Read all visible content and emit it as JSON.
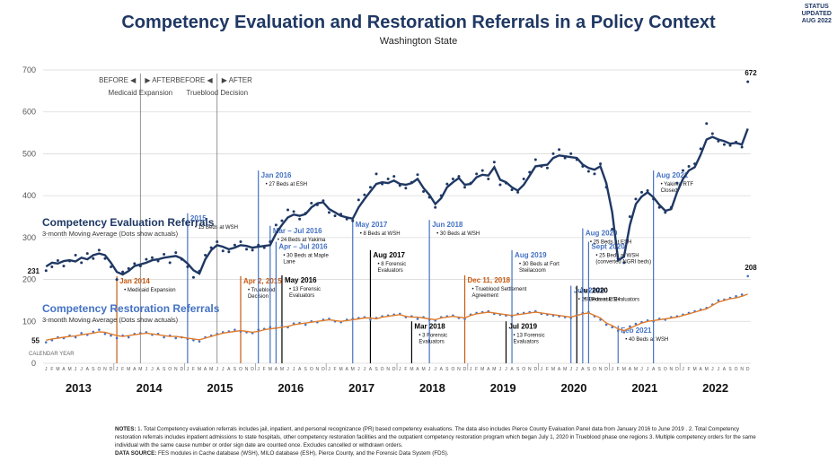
{
  "status": {
    "line1": "STATUS",
    "line2": "UPDATED",
    "line3": "AUG 2022"
  },
  "title": "Competency Evaluation and Restoration Referrals in a Policy Context",
  "subtitle": "Washington State",
  "notes": {
    "label": "NOTES:",
    "text": "1. Total Competency evaluation referrals includes jail, inpatient, and personal recognizance (PR) based competency evaluations. The data also includes Pierce County Evaluation Panel data from January 2016 to June 2019 . 2. Total Competency restoration referrals includes inpatient admissions to state hospitals, other competency restoration facilities and the outpatient competency restoration program which began July 1, 2020 in Trueblood phase one regions 3. Multiple competency orders for the same individual with the same cause number or order sign date are counted once. Excludes cancelled or withdrawn orders.",
    "source_label": "DATA SOURCE:",
    "source_text": "FES modules in Cache database (WSH), MILO database (ESH), Pierce County, and the Forensic Data System (FDS)."
  },
  "colors": {
    "eval": "#1f3864",
    "rest": "#e07b2b",
    "blue_event": "#4472c4",
    "orange_event": "#c55a11",
    "black_event": "#000000",
    "grid": "#d9d9d9"
  },
  "chart_data": {
    "type": "line",
    "x_unit": "month",
    "x_start": "2013-01",
    "ylim": [
      0,
      700
    ],
    "yticks": [
      0,
      100,
      200,
      300,
      400,
      500,
      600,
      700
    ],
    "year_labels": [
      "2013",
      "2014",
      "2015",
      "2016",
      "2017",
      "2018",
      "2019",
      "2020",
      "2021",
      "2022"
    ],
    "month_letters": [
      "J",
      "F",
      "M",
      "A",
      "M",
      "J",
      "J",
      "A",
      "S",
      "O",
      "N",
      "D"
    ],
    "calendar_year_label": "CALENDAR YEAR",
    "series": [
      {
        "name": "Competency Evaluation Referrals",
        "sublabel": "3-month Moving Average (Dots show actuals)",
        "color": "#1f3864",
        "start_label": "231",
        "end_label": "672",
        "average": [
          231,
          240,
          238,
          244,
          246,
          243,
          252,
          248,
          258,
          262,
          258,
          240,
          218,
          212,
          220,
          232,
          236,
          240,
          246,
          248,
          252,
          254,
          256,
          250,
          238,
          222,
          214,
          248,
          270,
          282,
          278,
          272,
          276,
          282,
          280,
          276,
          278,
          280,
          282,
          310,
          330,
          348,
          355,
          352,
          356,
          372,
          382,
          384,
          368,
          360,
          352,
          348,
          345,
          372,
          392,
          410,
          428,
          432,
          430,
          436,
          428,
          426,
          430,
          440,
          418,
          402,
          380,
          394,
          420,
          432,
          442,
          426,
          428,
          444,
          450,
          448,
          468,
          438,
          432,
          420,
          412,
          426,
          448,
          470,
          472,
          474,
          490,
          496,
          494,
          492,
          490,
          474,
          466,
          462,
          470,
          430,
          360,
          246,
          254,
          330,
          380,
          398,
          408,
          396,
          378,
          364,
          368,
          408,
          440,
          460,
          468,
          498,
          534,
          540,
          534,
          530,
          524,
          526,
          522,
          560
        ],
        "actual": [
          221,
          230,
          245,
          232,
          244,
          258,
          240,
          262,
          250,
          270,
          250,
          230,
          200,
          218,
          226,
          238,
          232,
          248,
          252,
          244,
          260,
          240,
          264,
          248,
          230,
          205,
          220,
          258,
          276,
          290,
          268,
          266,
          282,
          290,
          272,
          270,
          282,
          276,
          290,
          330,
          340,
          366,
          362,
          344,
          358,
          382,
          378,
          388,
          360,
          352,
          356,
          344,
          340,
          390,
          402,
          420,
          452,
          428,
          440,
          446,
          424,
          418,
          432,
          450,
          410,
          396,
          372,
          400,
          428,
          440,
          446,
          420,
          430,
          452,
          460,
          440,
          480,
          426,
          430,
          414,
          408,
          440,
          456,
          486,
          470,
          466,
          500,
          510,
          490,
          500,
          486,
          470,
          458,
          452,
          476,
          420,
          320,
          250,
          240,
          350,
          392,
          408,
          412,
          392,
          372,
          360,
          372,
          430,
          460,
          470,
          476,
          512,
          572,
          548,
          530,
          522,
          520,
          528,
          516,
          672
        ]
      },
      {
        "name": "Competency Restoration Referrals",
        "sublabel": "3-month Moving Average (Dots show actuals)",
        "color": "#e07b2b",
        "start_label": "55",
        "end_label": "208",
        "average": [
          55,
          58,
          60,
          62,
          64,
          65,
          68,
          70,
          72,
          75,
          74,
          70,
          66,
          64,
          66,
          68,
          70,
          72,
          70,
          68,
          66,
          64,
          64,
          62,
          60,
          58,
          56,
          60,
          64,
          68,
          72,
          74,
          76,
          78,
          76,
          74,
          76,
          80,
          82,
          84,
          86,
          88,
          92,
          94,
          96,
          98,
          100,
          102,
          104,
          102,
          100,
          102,
          104,
          106,
          108,
          108,
          106,
          110,
          112,
          114,
          116,
          112,
          110,
          110,
          108,
          106,
          104,
          108,
          110,
          112,
          110,
          108,
          114,
          118,
          120,
          122,
          120,
          118,
          116,
          114,
          116,
          118,
          120,
          122,
          120,
          118,
          116,
          114,
          112,
          110,
          114,
          118,
          120,
          114,
          108,
          96,
          90,
          82,
          78,
          84,
          90,
          96,
          100,
          102,
          104,
          106,
          108,
          110,
          114,
          118,
          122,
          126,
          130,
          138,
          146,
          150,
          154,
          156,
          160,
          165
        ],
        "actual": [
          50,
          55,
          62,
          60,
          66,
          62,
          72,
          68,
          75,
          80,
          70,
          66,
          60,
          66,
          62,
          70,
          72,
          74,
          68,
          70,
          62,
          66,
          60,
          62,
          58,
          55,
          52,
          62,
          66,
          70,
          74,
          76,
          80,
          76,
          74,
          72,
          80,
          82,
          86,
          84,
          90,
          86,
          95,
          96,
          92,
          100,
          98,
          104,
          106,
          100,
          98,
          104,
          106,
          108,
          110,
          104,
          108,
          112,
          114,
          116,
          118,
          110,
          112,
          106,
          110,
          104,
          102,
          110,
          112,
          114,
          108,
          106,
          116,
          120,
          122,
          124,
          118,
          116,
          114,
          112,
          118,
          120,
          122,
          124,
          118,
          116,
          114,
          112,
          110,
          108,
          116,
          120,
          122,
          112,
          104,
          92,
          86,
          78,
          74,
          88,
          94,
          98,
          102,
          100,
          106,
          104,
          110,
          112,
          116,
          120,
          124,
          128,
          132,
          140,
          150,
          152,
          156,
          160,
          164,
          208
        ]
      }
    ],
    "annotations": [
      {
        "kind": "bracket",
        "month": 16,
        "before": "BEFORE",
        "after": "AFTER",
        "name": "Medicaid Expansion"
      },
      {
        "kind": "bracket",
        "month": 29,
        "before": "BEFORE",
        "after": "AFTER",
        "name": "Trueblood Decision"
      },
      {
        "kind": "event",
        "color": "orange",
        "month": 12,
        "date": "Jan 2014",
        "lines": [
          "Medicaid Expansion"
        ],
        "top": 208
      },
      {
        "kind": "event",
        "color": "blue",
        "month": 24,
        "date": "2015",
        "lines": [
          "15 Beds at WSH"
        ],
        "top": 358
      },
      {
        "kind": "event",
        "color": "orange",
        "month": 33,
        "date": "Apr 2, 2015",
        "lines": [
          "Trueblood",
          "Decision"
        ],
        "top": 208
      },
      {
        "kind": "event",
        "color": "blue",
        "month": 36,
        "date": "Jan 2016",
        "lines": [
          "27 Beds at ESH"
        ],
        "top": 460
      },
      {
        "kind": "event",
        "color": "blue",
        "month": 38,
        "date": "Mar – Jul 2016",
        "lines": [
          "24 Beds at Yakima"
        ],
        "top": 328
      },
      {
        "kind": "event",
        "color": "blue",
        "month": 39,
        "date": "Apr – Jul 2016",
        "lines": [
          "30 Beds at Maple",
          "Lane"
        ],
        "top": 290
      },
      {
        "kind": "event",
        "color": "black",
        "month": 40,
        "date": "May 2016",
        "lines": [
          "13 Forensic",
          "Evaluators"
        ],
        "top": 210
      },
      {
        "kind": "event",
        "color": "blue",
        "month": 52,
        "date": "May 2017",
        "lines": [
          "8 Beds at WSH"
        ],
        "top": 342
      },
      {
        "kind": "event",
        "color": "black",
        "month": 55,
        "date": "Aug 2017",
        "lines": [
          "8 Forensic",
          "Evaluators"
        ],
        "top": 270
      },
      {
        "kind": "event",
        "color": "blue",
        "month": 65,
        "date": "Jun 2018",
        "lines": [
          "30 Beds at WSH"
        ],
        "top": 342
      },
      {
        "kind": "event",
        "color": "orange",
        "month": 71,
        "date": "Dec 11, 2018",
        "lines": [
          "Trueblood Settlement",
          "Agreement"
        ],
        "top": 210
      },
      {
        "kind": "event",
        "color": "black",
        "month": 62,
        "date": "Mar 2018",
        "lines": [
          "3 Forensic",
          "Evaluators"
        ],
        "top": 100
      },
      {
        "kind": "event",
        "color": "blue",
        "month": 79,
        "date": "Aug 2019",
        "lines": [
          "30 Beds at Fort",
          "Steilacoom"
        ],
        "top": 270
      },
      {
        "kind": "event",
        "color": "black",
        "month": 78,
        "date": "Jul 2019",
        "lines": [
          "13 Forensic",
          "Evaluators"
        ],
        "top": 100
      },
      {
        "kind": "event",
        "color": "blue",
        "month": 89,
        "date": "Jun 2020",
        "lines": [
          "25 Beds at ESH"
        ],
        "top": 185
      },
      {
        "kind": "event",
        "color": "black",
        "month": 90,
        "date": "Jul 2020",
        "lines": [
          "5 Forensic Evaluators"
        ],
        "top": 185
      },
      {
        "kind": "event",
        "color": "blue",
        "month": 91,
        "date": "Aug 2020",
        "lines": [
          "25 Beds at ESH"
        ],
        "top": 322
      },
      {
        "kind": "event",
        "color": "blue",
        "month": 92,
        "date": "Sept 2020",
        "lines": [
          "25 Beds at WSH",
          "(converted NGRI beds)"
        ],
        "top": 290
      },
      {
        "kind": "event",
        "color": "blue",
        "month": 97,
        "date": "Feb 2021",
        "lines": [
          "40 Beds at WSH"
        ],
        "top": 90
      },
      {
        "kind": "event",
        "color": "blue",
        "month": 103,
        "date": "Aug 2021",
        "lines": [
          "Yakima RTF",
          "Closed"
        ],
        "top": 460
      }
    ]
  }
}
